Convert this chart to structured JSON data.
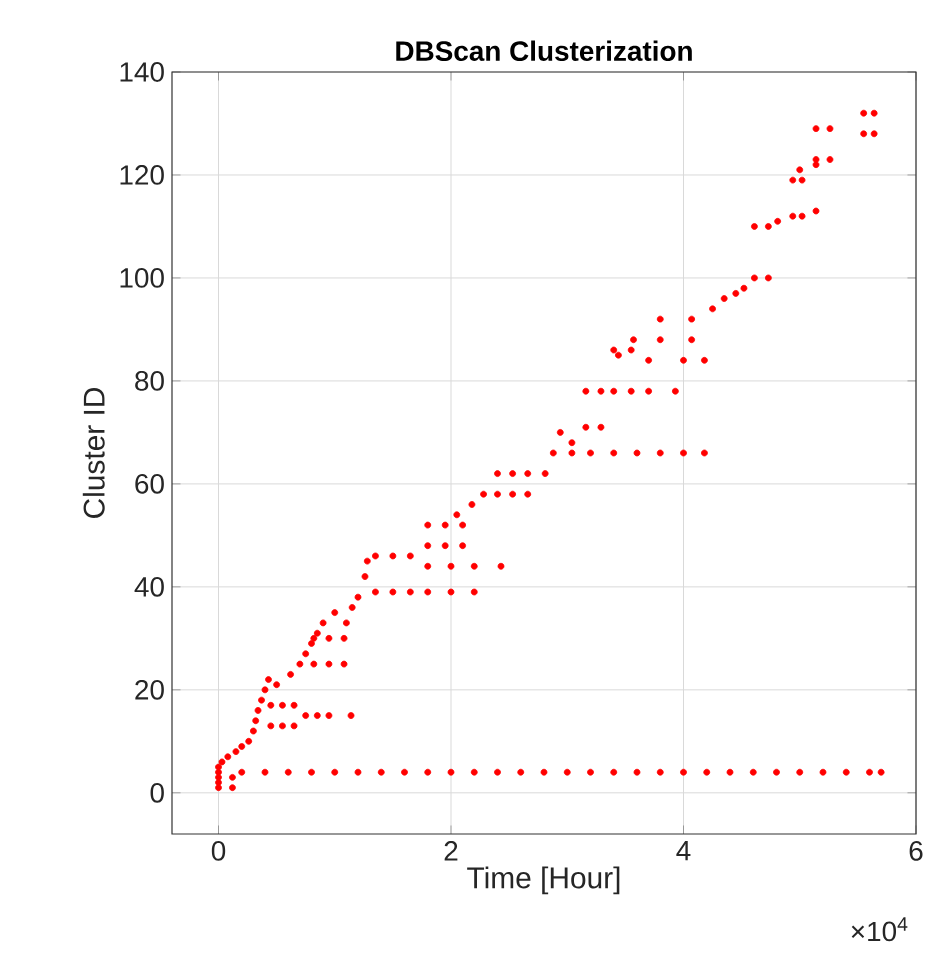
{
  "chart_data": {
    "type": "scatter",
    "title": "DBScan Clusterization",
    "xlabel": "Time [Hour]",
    "ylabel": "Cluster ID",
    "annotations": [
      "×10$^{4}$"
    ],
    "xlim": [
      -0.4,
      6
    ],
    "ylim": [
      -8,
      140
    ],
    "xticks": [
      0,
      2,
      4,
      6
    ],
    "yticks": [
      0,
      20,
      40,
      60,
      80,
      100,
      120,
      140
    ],
    "grid": true,
    "series": [
      {
        "color": "#ff0000",
        "x": [
          0,
          0.2,
          0.4,
          0.6,
          0.8,
          1.0,
          1.2,
          1.4,
          1.6,
          1.8,
          2.0,
          2.2,
          2.4,
          2.6,
          2.8,
          3.0,
          3.2,
          3.4,
          3.6,
          3.8,
          4.0,
          4.2,
          4.4,
          4.6,
          4.8,
          5.0,
          5.2,
          5.4,
          5.6,
          5.7,
          0,
          0,
          0,
          0,
          0.12,
          0.12,
          0.03,
          0.08,
          0.15,
          0.2,
          0.26,
          0.3,
          0.32,
          0.34,
          0.37,
          0.4,
          0.43,
          0.45,
          0.45,
          0.55,
          0.55,
          0.65,
          0.65,
          0.75,
          0.85,
          0.95,
          1.14,
          0.5,
          0.62,
          0.7,
          0.75,
          0.8,
          0.85,
          0.9,
          1.0,
          1.1,
          1.15,
          1.2,
          1.26,
          1.28,
          0.82,
          0.82,
          0.95,
          0.95,
          1.08,
          1.08,
          1.35,
          1.35,
          1.5,
          1.5,
          1.65,
          1.65,
          1.8,
          2.0,
          2.2,
          1.8,
          2.0,
          2.2,
          2.43,
          1.8,
          1.8,
          1.95,
          1.95,
          2.1,
          2.1,
          2.05,
          2.18,
          2.28,
          2.4,
          2.4,
          2.53,
          2.53,
          2.66,
          2.66,
          2.81,
          2.88,
          2.94,
          3.04,
          3.2,
          3.4,
          3.6,
          3.8,
          4.0,
          4.18,
          3.04,
          3.16,
          3.16,
          3.29,
          3.29,
          3.44,
          3.57,
          3.4,
          3.4,
          3.55,
          3.55,
          3.7,
          3.93,
          3.7,
          4.0,
          4.18,
          3.8,
          3.8,
          4.07,
          4.07,
          4.25,
          4.35,
          4.45,
          4.52,
          4.61,
          4.61,
          4.73,
          4.73,
          4.81,
          4.94,
          4.94,
          5.02,
          5.02,
          5.14,
          5.0,
          5.14,
          5.14,
          5.14,
          5.26,
          5.26,
          5.55,
          5.55,
          5.64,
          5.64
        ],
        "values": [
          4,
          4,
          4,
          4,
          4,
          4,
          4,
          4,
          4,
          4,
          4,
          4,
          4,
          4,
          4,
          4,
          4,
          4,
          4,
          4,
          4,
          4,
          4,
          4,
          4,
          4,
          4,
          4,
          4,
          4,
          1,
          2,
          3,
          5,
          1,
          3,
          6,
          7,
          8,
          9,
          10,
          12,
          14,
          16,
          18,
          20,
          22,
          13,
          17,
          13,
          17,
          13,
          17,
          15,
          15,
          15,
          15,
          21,
          23,
          25,
          27,
          29,
          31,
          33,
          35,
          33,
          36,
          38,
          42,
          45,
          25,
          30,
          25,
          30,
          25,
          30,
          39,
          46,
          39,
          46,
          39,
          46,
          39,
          39,
          39,
          44,
          44,
          44,
          44,
          48,
          52,
          48,
          52,
          48,
          52,
          54,
          56,
          58,
          58,
          62,
          58,
          62,
          58,
          62,
          62,
          66,
          70,
          66,
          66,
          66,
          66,
          66,
          66,
          66,
          68,
          71,
          78,
          71,
          78,
          85,
          88,
          78,
          86,
          78,
          86,
          78,
          78,
          84,
          84,
          84,
          88,
          92,
          88,
          92,
          94,
          96,
          97,
          98,
          100,
          110,
          100,
          110,
          111,
          112,
          119,
          112,
          119,
          113,
          121,
          122,
          123,
          129,
          123,
          129,
          128,
          132,
          128,
          132
        ]
      }
    ]
  }
}
